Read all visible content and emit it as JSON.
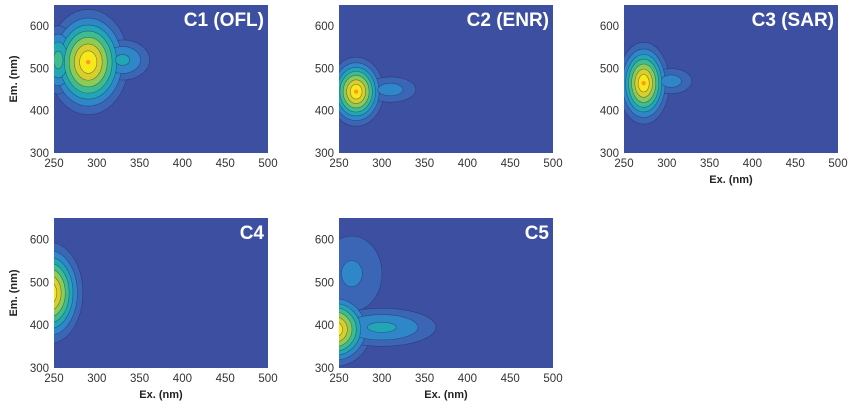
{
  "colors": {
    "levels": [
      "#3d4fa1",
      "#3b66b6",
      "#2f86c9",
      "#22a5b5",
      "#3fbc8f",
      "#8ccc55",
      "#d8cf2c",
      "#f7e81c"
    ],
    "contour_line": "#1d2a4d"
  },
  "chart_data": [
    {
      "type": "heatmap",
      "title": "C1 (OFL)",
      "xlabel": "",
      "ylabel": "Em. (nm)",
      "xlim": [
        250,
        500
      ],
      "ylim": [
        300,
        650
      ],
      "xticks": [
        250,
        300,
        350,
        400,
        450,
        500
      ],
      "yticks": [
        300,
        400,
        500,
        600
      ],
      "peaks": [
        {
          "ex": 290,
          "em": 515,
          "intensity": 1.0,
          "sx": 22,
          "sy": 58
        },
        {
          "ex": 330,
          "em": 520,
          "intensity": 0.35,
          "sx": 20,
          "sy": 30
        },
        {
          "ex": 255,
          "em": 520,
          "intensity": 0.5,
          "sx": 12,
          "sy": 45
        }
      ]
    },
    {
      "type": "heatmap",
      "title": "C2 (ENR)",
      "xlabel": "",
      "ylabel": "",
      "xlim": [
        250,
        500
      ],
      "ylim": [
        300,
        650
      ],
      "xticks": [
        250,
        300,
        350,
        400,
        450,
        500
      ],
      "yticks": [
        300,
        400,
        500,
        600
      ],
      "peaks": [
        {
          "ex": 270,
          "em": 445,
          "intensity": 1.0,
          "sx": 15,
          "sy": 38
        },
        {
          "ex": 310,
          "em": 450,
          "intensity": 0.25,
          "sx": 22,
          "sy": 22
        }
      ]
    },
    {
      "type": "heatmap",
      "title": "C3 (SAR)",
      "xlabel": "Ex. (nm)",
      "ylabel": "",
      "xlim": [
        250,
        500
      ],
      "ylim": [
        300,
        650
      ],
      "xticks": [
        250,
        300,
        350,
        400,
        450,
        500
      ],
      "yticks": [
        300,
        400,
        500,
        600
      ],
      "peaks": [
        {
          "ex": 273,
          "em": 465,
          "intensity": 1.0,
          "sx": 14,
          "sy": 45
        },
        {
          "ex": 305,
          "em": 470,
          "intensity": 0.25,
          "sx": 18,
          "sy": 22
        }
      ]
    },
    {
      "type": "heatmap",
      "title": "C4",
      "xlabel": "Ex. (nm)",
      "ylabel": "Em. (nm)",
      "xlim": [
        250,
        500
      ],
      "ylim": [
        300,
        650
      ],
      "xticks": [
        250,
        300,
        350,
        400,
        450,
        500
      ],
      "yticks": [
        300,
        400,
        500,
        600
      ],
      "peaks": [
        {
          "ex": 245,
          "em": 475,
          "intensity": 1.0,
          "sx": 18,
          "sy": 55
        }
      ]
    },
    {
      "type": "heatmap",
      "title": "C5",
      "xlabel": "Ex. (nm)",
      "ylabel": "",
      "xlim": [
        250,
        500
      ],
      "ylim": [
        300,
        650
      ],
      "xticks": [
        250,
        300,
        350,
        400,
        450,
        500
      ],
      "yticks": [
        300,
        400,
        500,
        600
      ],
      "peaks": [
        {
          "ex": 245,
          "em": 390,
          "intensity": 1.0,
          "sx": 20,
          "sy": 40
        },
        {
          "ex": 300,
          "em": 395,
          "intensity": 0.35,
          "sx": 40,
          "sy": 28
        },
        {
          "ex": 265,
          "em": 520,
          "intensity": 0.22,
          "sx": 28,
          "sy": 70
        }
      ]
    }
  ]
}
